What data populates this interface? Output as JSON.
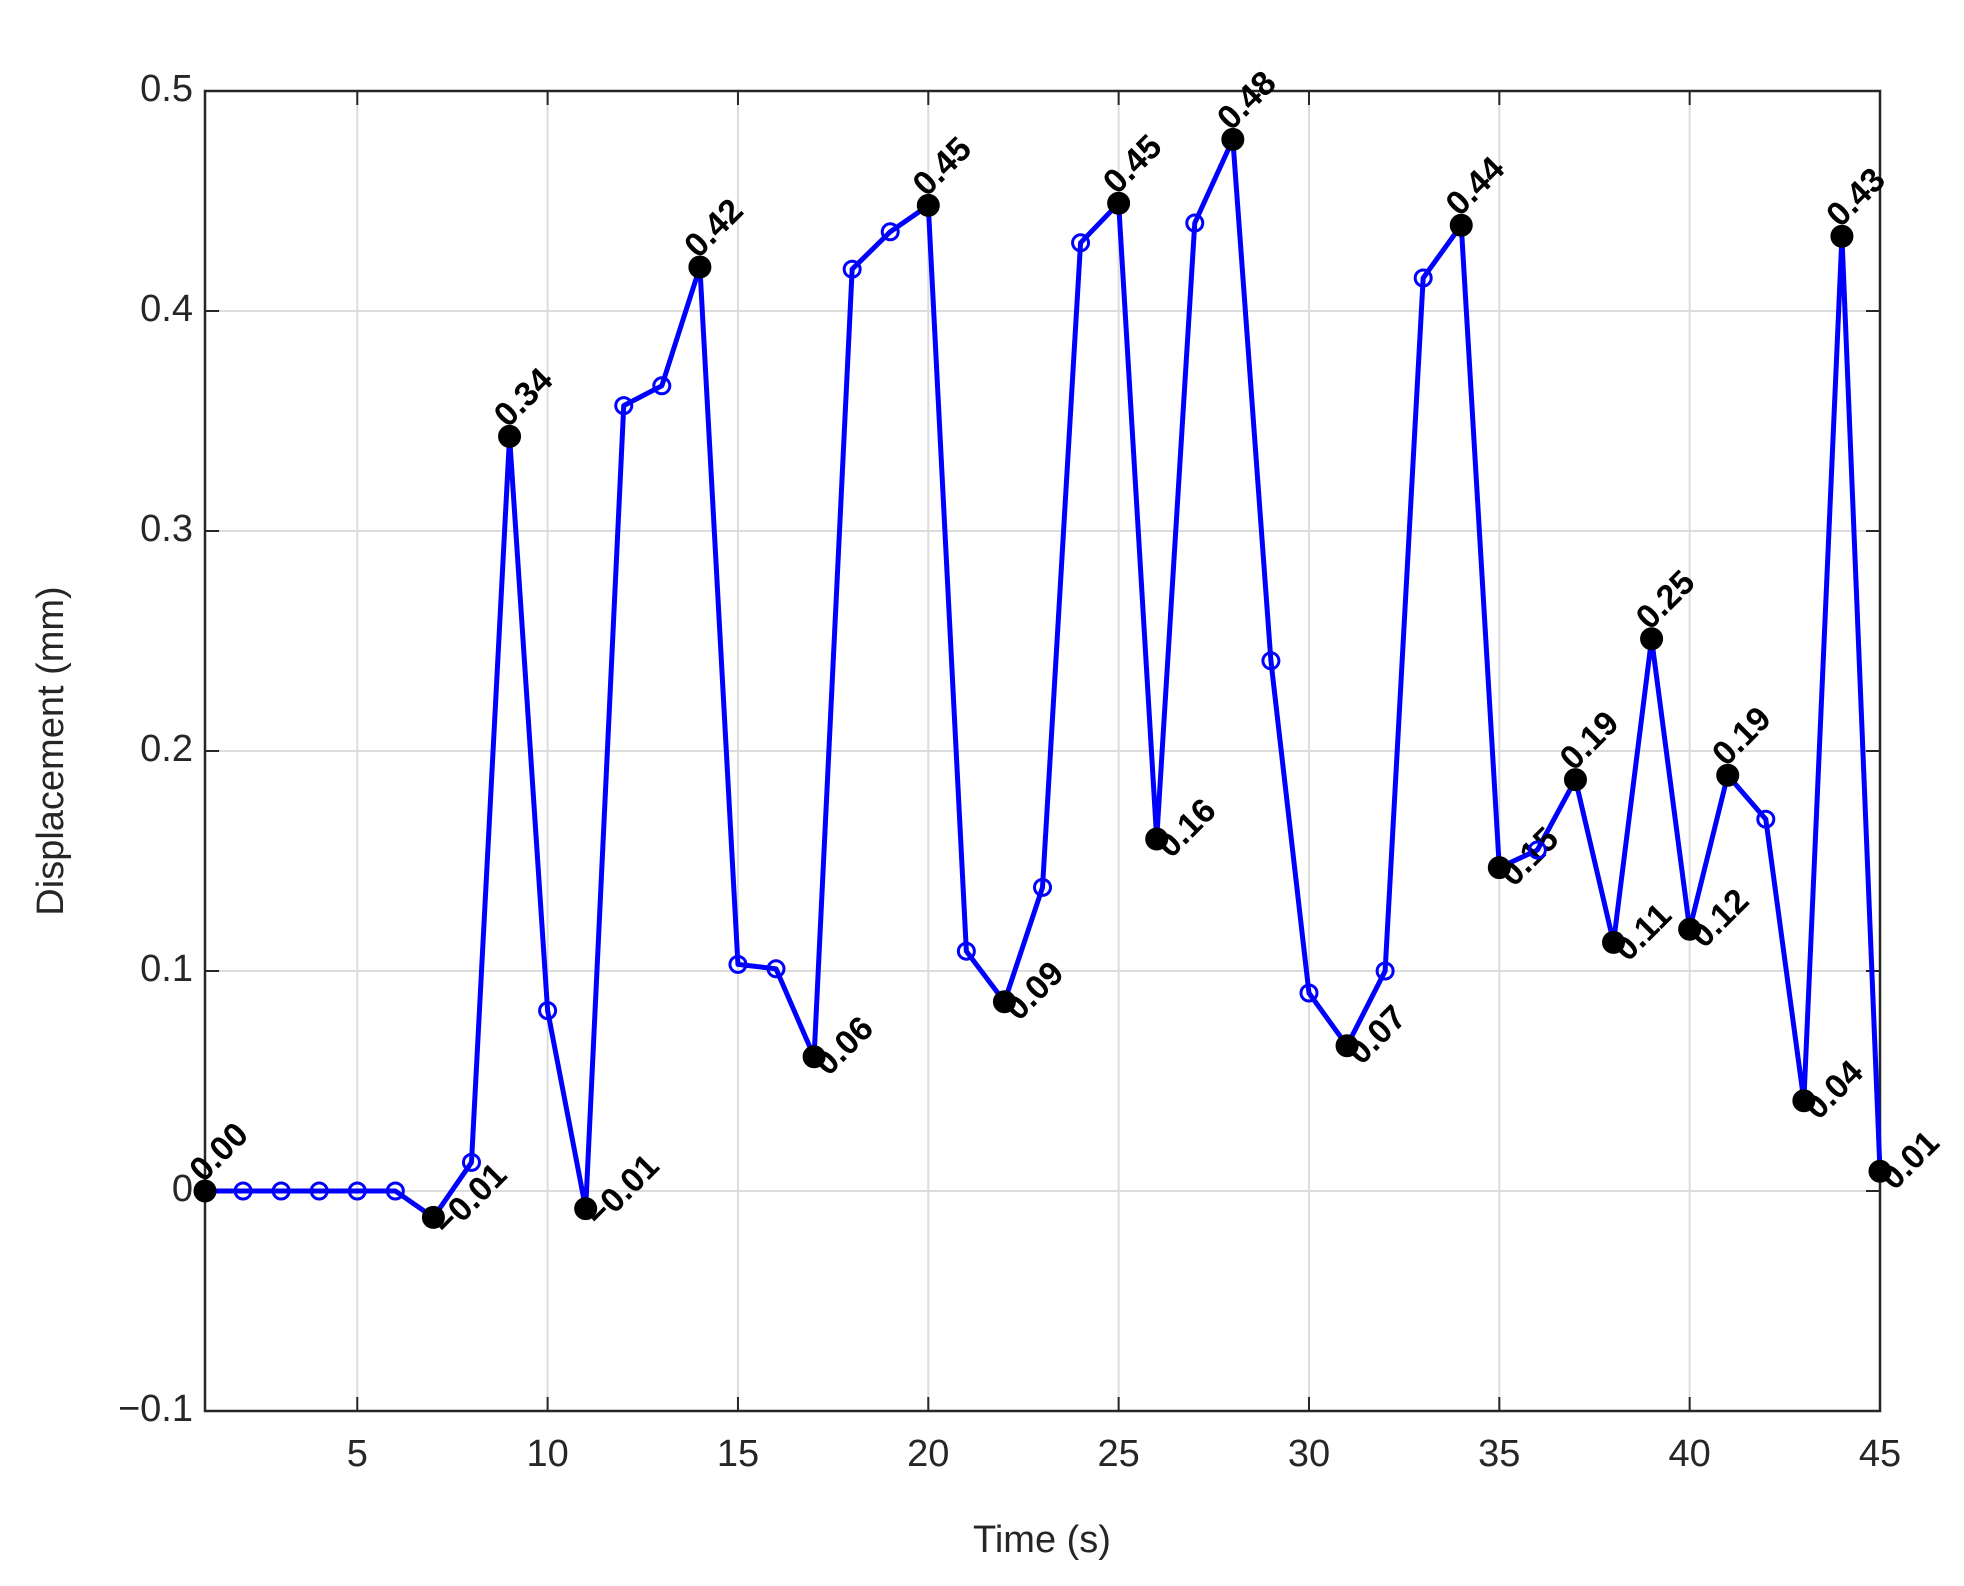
{
  "chart_data": {
    "type": "line",
    "x_label": "Time (s)",
    "y_label": "Displacement (mm)",
    "x": [
      1,
      2,
      3,
      4,
      5,
      6,
      7,
      8,
      9,
      10,
      11,
      12,
      13,
      14,
      15,
      16,
      17,
      18,
      19,
      20,
      21,
      22,
      23,
      24,
      25,
      26,
      27,
      28,
      29,
      30,
      31,
      32,
      33,
      34,
      35,
      36,
      37,
      38,
      39,
      40,
      41,
      42,
      43,
      44,
      45
    ],
    "series": [
      {
        "color": "#0000ff",
        "highlight_color": "#000000",
        "values": [
          0,
          0,
          0,
          0,
          0,
          0,
          -0.012,
          0.013,
          0.343,
          0.082,
          -0.008,
          0.357,
          0.366,
          0.42,
          0.103,
          0.101,
          0.061,
          0.419,
          0.436,
          0.448,
          0.109,
          0.086,
          0.138,
          0.431,
          0.449,
          0.16,
          0.44,
          0.478,
          0.241,
          0.09,
          0.066,
          0.1,
          0.415,
          0.439,
          0.147,
          0.155,
          0.187,
          0.113,
          0.251,
          0.119,
          0.189,
          0.169,
          0.041,
          0.434,
          0.009
        ],
        "value_labels": [
          "0.00",
          null,
          null,
          null,
          null,
          null,
          "−0.01",
          null,
          "0.34",
          null,
          "−0.01",
          null,
          null,
          "0.42",
          null,
          null,
          "0.06",
          null,
          null,
          "0.45",
          null,
          "0.09",
          null,
          null,
          "0.45",
          "0.16",
          null,
          "0.48",
          null,
          null,
          "0.07",
          null,
          null,
          "0.44",
          "0.15",
          null,
          "0.19",
          "0.11",
          "0.25",
          "0.12",
          "0.19",
          null,
          "0.04",
          "0.43",
          "0.01"
        ]
      }
    ],
    "xlim": [
      1,
      45
    ],
    "xticks": [
      5,
      10,
      15,
      20,
      25,
      30,
      35,
      40,
      45
    ],
    "ylim": [
      -0.1,
      0.5
    ],
    "yticks": [
      {
        "value": -0.1,
        "label": "−0.1"
      },
      0,
      0.1,
      0.2,
      0.3,
      0.4,
      0.5
    ],
    "grid": true
  }
}
